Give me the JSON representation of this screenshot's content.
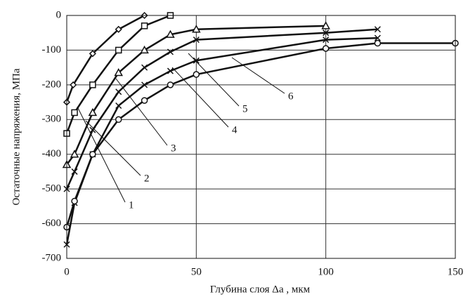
{
  "chart_data": {
    "type": "line",
    "x_label": "Глубина слоя Δa , мкм",
    "y_label": "Остаточные напряжения, МПа",
    "xlim": [
      0,
      150
    ],
    "xticks": [
      0,
      50,
      100,
      150
    ],
    "ylim": [
      -700,
      0
    ],
    "yticks": [
      0,
      -100,
      -200,
      -300,
      -400,
      -500,
      -600,
      -700
    ],
    "grid": true,
    "series": [
      {
        "name": "1",
        "color": "#111111",
        "marker": "diamond",
        "x": [
          0,
          2.5,
          10,
          20,
          30
        ],
        "values": [
          -250,
          -200,
          -110,
          -40,
          0
        ]
      },
      {
        "name": "2",
        "color": "#111111",
        "marker": "square",
        "x": [
          0,
          3,
          10,
          20,
          30,
          40
        ],
        "values": [
          -340,
          -280,
          -200,
          -100,
          -30,
          0
        ]
      },
      {
        "name": "3",
        "color": "#111111",
        "marker": "triangle",
        "x": [
          0,
          3,
          10,
          20,
          30,
          40,
          50,
          100
        ],
        "values": [
          -430,
          -400,
          -280,
          -165,
          -100,
          -55,
          -40,
          -30
        ]
      },
      {
        "name": "4",
        "color": "#111111",
        "marker": "cross",
        "x": [
          0,
          3,
          10,
          20,
          30,
          40,
          50,
          100,
          120
        ],
        "values": [
          -500,
          -450,
          -330,
          -220,
          -150,
          -105,
          -70,
          -50,
          -40
        ]
      },
      {
        "name": "5",
        "color": "#111111",
        "marker": "cross",
        "x": [
          0,
          3,
          10,
          20,
          30,
          40,
          50,
          100,
          120
        ],
        "values": [
          -660,
          -540,
          -400,
          -260,
          -200,
          -160,
          -130,
          -70,
          -65
        ]
      },
      {
        "name": "6",
        "color": "#111111",
        "marker": "circle",
        "x": [
          0,
          3,
          10,
          20,
          30,
          40,
          50,
          100,
          120,
          150
        ],
        "values": [
          -610,
          -535,
          -400,
          -300,
          -245,
          -200,
          -170,
          -95,
          -80,
          -80
        ]
      }
    ]
  }
}
